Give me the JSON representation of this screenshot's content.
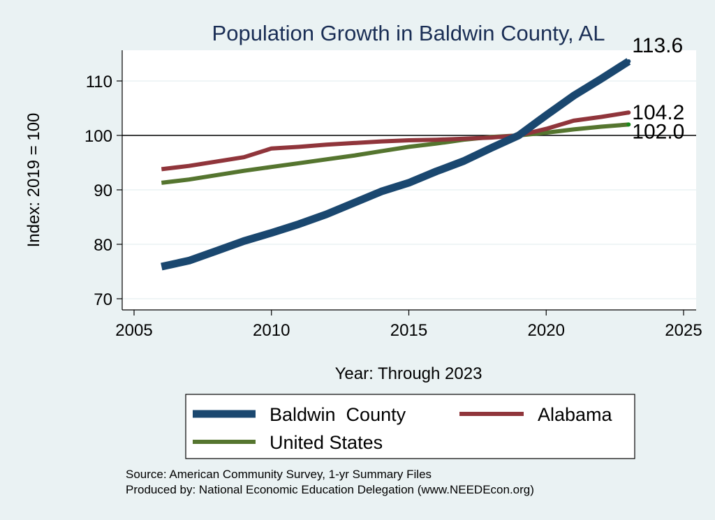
{
  "chart_data": {
    "type": "line",
    "title": "Population Growth in Baldwin County, AL",
    "xlabel": "Year: Through 2023",
    "ylabel": "Index: 2019 = 100",
    "xlim": [
      2005,
      2025
    ],
    "ylim": [
      70,
      115
    ],
    "xticks": [
      2005,
      2010,
      2015,
      2020,
      2025
    ],
    "yticks": [
      70,
      80,
      90,
      100,
      110
    ],
    "reference_line": 100,
    "x": [
      2006,
      2007,
      2008,
      2009,
      2010,
      2011,
      2012,
      2013,
      2014,
      2015,
      2016,
      2017,
      2018,
      2019,
      2020,
      2021,
      2022,
      2023
    ],
    "series": [
      {
        "name": "Baldwin  County",
        "color": "#1a476f",
        "values": [
          75.9,
          77.0,
          78.8,
          80.6,
          82.1,
          83.7,
          85.5,
          87.6,
          89.7,
          91.3,
          93.4,
          95.3,
          97.7,
          100.0,
          103.7,
          107.3,
          110.4,
          113.6
        ],
        "end_label": "113.6"
      },
      {
        "name": "Alabama",
        "color": "#90353b",
        "values": [
          93.8,
          94.4,
          95.2,
          96.0,
          97.6,
          97.9,
          98.3,
          98.6,
          98.9,
          99.1,
          99.2,
          99.4,
          99.6,
          100.0,
          101.2,
          102.7,
          103.4,
          104.2
        ],
        "end_label": "104.2"
      },
      {
        "name": "United States",
        "color": "#55752f",
        "values": [
          91.3,
          91.9,
          92.7,
          93.5,
          94.2,
          94.9,
          95.6,
          96.3,
          97.1,
          97.9,
          98.5,
          99.2,
          99.7,
          100.0,
          100.5,
          101.1,
          101.6,
          102.0
        ],
        "end_label": "102.0"
      }
    ],
    "legend_position": "bottom",
    "notes": [
      "Source: American Community Survey, 1-yr Summary Files",
      "Produced by: National Economic Education Delegation (www.NEEDEcon.org)"
    ]
  }
}
